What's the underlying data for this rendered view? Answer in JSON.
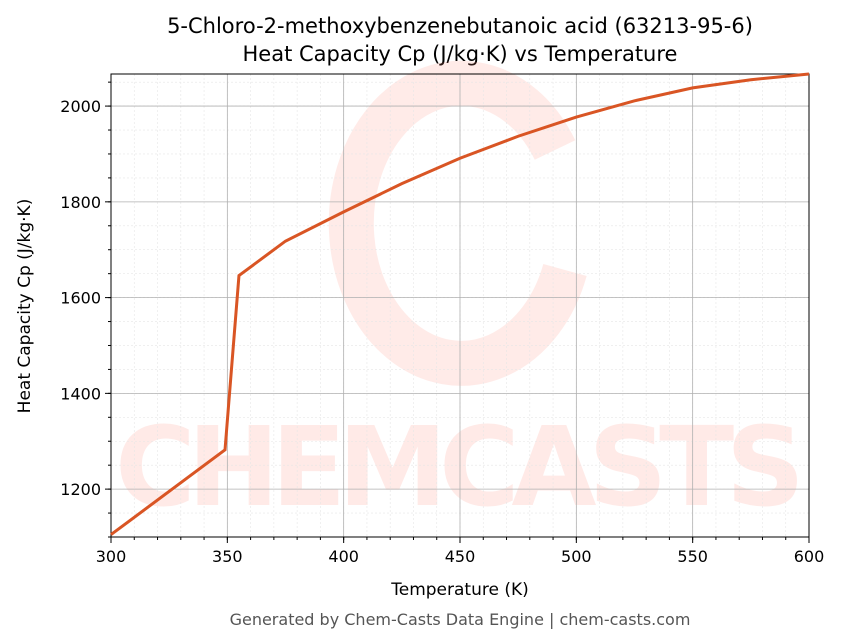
{
  "chart_data": {
    "type": "line",
    "title": "5-Chloro-2-methoxybenzenebutanoic acid (63213-95-6)",
    "subtitle": "Heat Capacity Cp (J/kg·K) vs Temperature",
    "x_label": "Temperature (K)",
    "y_label": "Heat Capacity Cp (J/kg·K)",
    "footer": "Generated by Chem-Casts Data Engine | chem-casts.com",
    "watermark": "CHEMCASTS",
    "x": [
      300,
      349,
      355,
      375,
      400,
      425,
      450,
      475,
      500,
      525,
      550,
      575,
      600
    ],
    "series": [
      {
        "name": "Cp",
        "color": "#d95524",
        "values": [
          1105,
          1282,
          1646,
          1718,
          1779,
          1838,
          1891,
          1937,
          1977,
          2011,
          2038,
          2055,
          2067
        ]
      }
    ],
    "xlim": [
      300,
      600
    ],
    "ylim": [
      1100,
      2067
    ],
    "xticks": [
      300,
      350,
      400,
      450,
      500,
      550,
      600
    ],
    "yticks": [
      1200,
      1400,
      1600,
      1800,
      2000
    ],
    "grid": true,
    "minor_grid": true
  }
}
